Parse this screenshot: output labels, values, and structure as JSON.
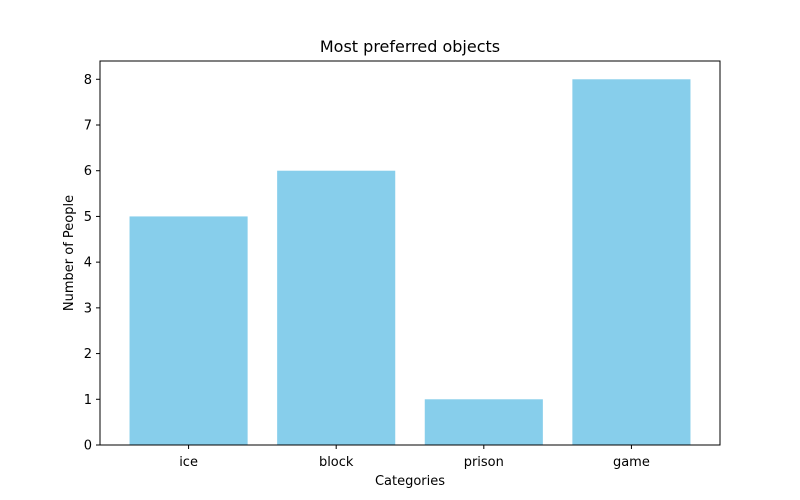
{
  "chart_data": {
    "type": "bar",
    "title": "Most preferred objects",
    "xlabel": "Categories",
    "ylabel": "Number of People",
    "categories": [
      "ice",
      "block",
      "prison",
      "game"
    ],
    "values": [
      5,
      6,
      1,
      8
    ],
    "ylim": [
      0,
      8.4
    ],
    "yticks": [
      0,
      1,
      2,
      3,
      4,
      5,
      6,
      7,
      8
    ],
    "bar_color": "#87CEEB",
    "grid": false,
    "legend": "none"
  }
}
